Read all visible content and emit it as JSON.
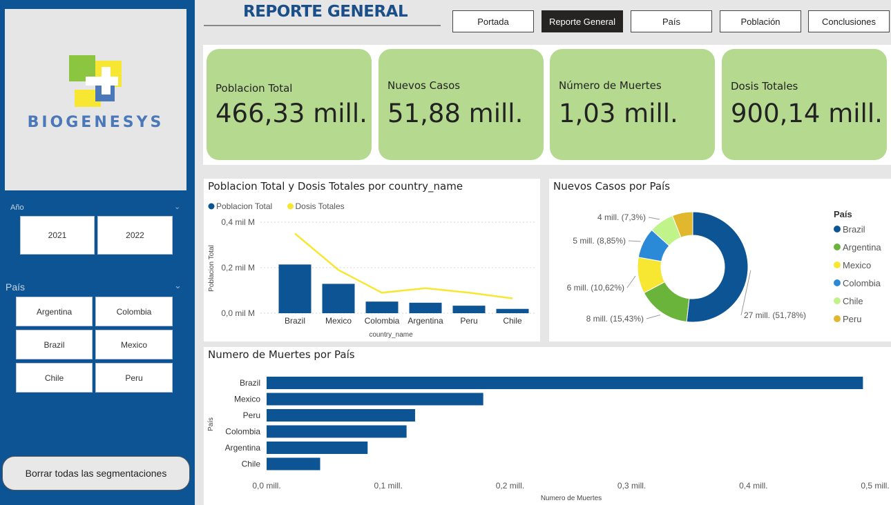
{
  "brand": {
    "name": "BIOGENESYS"
  },
  "colors": {
    "sidebar": "#0c5494",
    "kpi_card": "#b5d98f",
    "bar": "#0c5494",
    "line": "#f7e632"
  },
  "header": {
    "title": "REPORTE GENERAL",
    "tabs": [
      {
        "label": "Portada",
        "active": false
      },
      {
        "label": "Reporte General",
        "active": true
      },
      {
        "label": "País",
        "active": false
      },
      {
        "label": "Población",
        "active": false
      },
      {
        "label": "Conclusiones",
        "active": false
      }
    ]
  },
  "slicers": {
    "year": {
      "label": "Año",
      "options": [
        "2021",
        "2022"
      ]
    },
    "country": {
      "label": "País",
      "options": [
        "Argentina",
        "Colombia",
        "Brazil",
        "Mexico",
        "Chile",
        "Peru"
      ]
    },
    "clear_label": "Borrar todas las segmentaciones"
  },
  "kpis": [
    {
      "label": "Poblacion Total",
      "value": "466,33 mill."
    },
    {
      "label": "Nuevos Casos",
      "value": "51,88 mill."
    },
    {
      "label": "Número de Muertes",
      "value": "1,03 mill."
    },
    {
      "label": "Dosis Totales",
      "value": "900,14 mill."
    }
  ],
  "chart_data": [
    {
      "type": "bar",
      "title": "Poblacion Total y Dosis Totales por country_name",
      "xlabel": "country_name",
      "ylabel": "Poblacion Total",
      "categories": [
        "Brazil",
        "Mexico",
        "Colombia",
        "Argentina",
        "Peru",
        "Chile"
      ],
      "yticks": [
        "0,0 mil M",
        "0,2 mil M",
        "0,4 mil M"
      ],
      "ylim": [
        0,
        0.4
      ],
      "legend": "top-left",
      "series": [
        {
          "name": "Poblacion Total",
          "kind": "bar",
          "color": "#0c5494",
          "values": [
            0.214,
            0.129,
            0.051,
            0.046,
            0.033,
            0.019
          ]
        },
        {
          "name": "Dosis Totales",
          "kind": "line",
          "color": "#f7e632",
          "values": [
            0.35,
            0.19,
            0.09,
            0.11,
            0.09,
            0.065
          ]
        }
      ]
    },
    {
      "type": "donut",
      "title": "Nuevos Casos por País",
      "legend_title": "País",
      "legend": "right",
      "slices": [
        {
          "name": "Brazil",
          "value": 27,
          "percent": 51.78,
          "label": "27 mill. (51,78%)",
          "color": "#0c5494"
        },
        {
          "name": "Argentina",
          "value": 8,
          "percent": 15.43,
          "label": "8 mill. (15,43%)",
          "color": "#6ab43c"
        },
        {
          "name": "Mexico",
          "value": 6,
          "percent": 10.62,
          "label": "6 mill. (10,62%)",
          "color": "#f7e632"
        },
        {
          "name": "Colombia",
          "value": 5,
          "percent": 8.85,
          "label": "5 mill. (8,85%)",
          "color": "#2a8ad8"
        },
        {
          "name": "Chile",
          "value": 4,
          "percent": 7.3,
          "label": "4 mill. (7,3%)",
          "color": "#c0f38a"
        },
        {
          "name": "Peru",
          "value": 3,
          "percent": 6.02,
          "label": "",
          "color": "#e0b72d"
        }
      ]
    },
    {
      "type": "bar",
      "orientation": "horizontal",
      "title": "Numero de Muertes por País",
      "xlabel": "Numero de Muertes",
      "ylabel": "País",
      "categories": [
        "Brazil",
        "Mexico",
        "Peru",
        "Colombia",
        "Argentina",
        "Chile"
      ],
      "values": [
        0.49,
        0.178,
        0.122,
        0.115,
        0.083,
        0.044
      ],
      "xticks": [
        "0,0 mill.",
        "0,1 mill.",
        "0,2 mill.",
        "0,3 mill.",
        "0,4 mill.",
        "0,5 mill."
      ],
      "xlim": [
        0,
        0.5
      ]
    }
  ]
}
